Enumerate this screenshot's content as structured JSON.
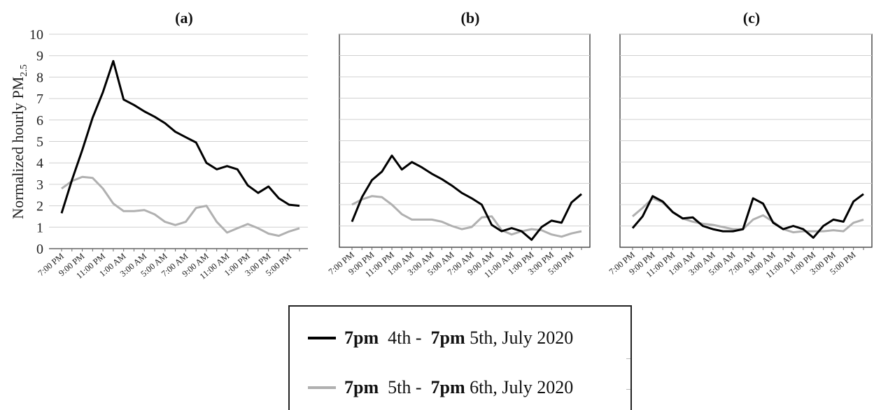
{
  "chart_data": {
    "type": "line",
    "ylabel": "Normalized hourly PM",
    "ylabel_sub": "2.5",
    "ylim": [
      0,
      10
    ],
    "yticks": [
      "0",
      "1",
      "2",
      "3",
      "4",
      "5",
      "6",
      "7",
      "8",
      "9",
      "10"
    ],
    "xtick_labels": [
      "7:00 PM",
      "9:00 PM",
      "11:00 PM",
      "1:00 AM",
      "3:00 AM",
      "5:00 AM",
      "7:00 AM",
      "9:00 AM",
      "11:00 AM",
      "1:00 PM",
      "3:00 PM",
      "5:00 PM"
    ],
    "grid": true,
    "colors": {
      "series1": "#000000",
      "series2": "#b0b0b0"
    },
    "legend": {
      "placement": "bottom-center",
      "entries": [
        {
          "time_start": "7pm",
          "day_start": "4th -",
          "time_end": "7pm",
          "day_end": "5th, July 2020",
          "color": "#000000"
        },
        {
          "time_start": "7pm",
          "day_start": "5th -",
          "time_end": "7pm",
          "day_end": "6th, July 2020",
          "color": "#b0b0b0"
        }
      ]
    },
    "panels": [
      {
        "title": "(a)",
        "series": [
          {
            "values": [
              1.65,
              3.2,
              4.6,
              6.1,
              7.3,
              8.75,
              6.95,
              6.7,
              6.4,
              6.15,
              5.85,
              5.45,
              5.2,
              4.95,
              4.0,
              3.7,
              3.85,
              3.7,
              2.95,
              2.6,
              2.9,
              2.35,
              2.05,
              2.0
            ]
          },
          {
            "values": [
              2.8,
              3.15,
              3.35,
              3.3,
              2.8,
              2.1,
              1.75,
              1.75,
              1.8,
              1.6,
              1.25,
              1.1,
              1.25,
              1.9,
              2.0,
              1.25,
              0.75,
              0.95,
              1.15,
              0.95,
              0.7,
              0.6,
              0.8,
              0.95
            ]
          }
        ]
      },
      {
        "title": "(b)",
        "series": [
          {
            "values": [
              1.2,
              2.35,
              3.15,
              3.55,
              4.3,
              3.65,
              4.0,
              3.75,
              3.45,
              3.2,
              2.9,
              2.55,
              2.3,
              2.0,
              1.05,
              0.75,
              0.9,
              0.75,
              0.35,
              0.95,
              1.25,
              1.15,
              2.1,
              2.5
            ]
          },
          {
            "values": [
              2.0,
              2.25,
              2.4,
              2.35,
              2.0,
              1.55,
              1.3,
              1.3,
              1.3,
              1.2,
              1.0,
              0.85,
              0.95,
              1.4,
              1.45,
              0.8,
              0.6,
              0.75,
              0.85,
              0.8,
              0.6,
              0.5,
              0.65,
              0.75
            ]
          }
        ]
      },
      {
        "title": "(c)",
        "series": [
          {
            "values": [
              0.9,
              1.45,
              2.4,
              2.15,
              1.65,
              1.35,
              1.4,
              1.0,
              0.85,
              0.75,
              0.75,
              0.85,
              2.3,
              2.05,
              1.15,
              0.85,
              1.0,
              0.85,
              0.45,
              1.0,
              1.3,
              1.2,
              2.15,
              2.5
            ]
          },
          {
            "values": [
              1.45,
              1.85,
              2.3,
              2.1,
              1.65,
              1.35,
              1.2,
              1.1,
              1.05,
              0.95,
              0.85,
              0.85,
              1.3,
              1.5,
              1.2,
              0.85,
              0.7,
              0.75,
              0.75,
              0.75,
              0.8,
              0.75,
              1.15,
              1.3
            ]
          }
        ]
      }
    ]
  }
}
